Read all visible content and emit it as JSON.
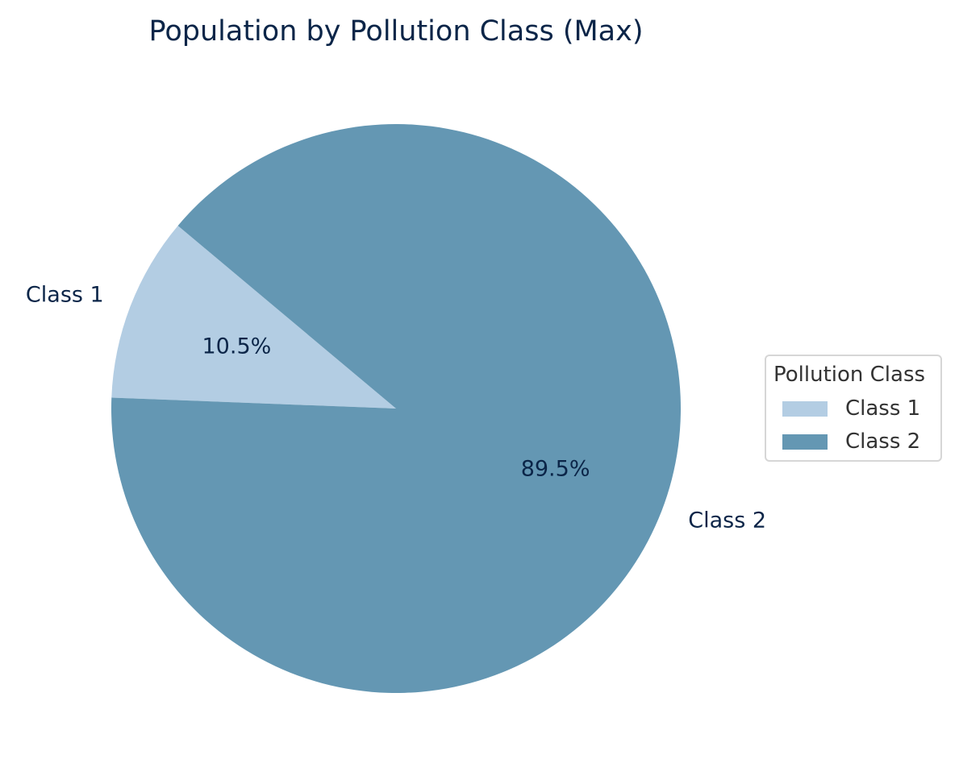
{
  "chart_data": {
    "type": "pie",
    "title": "Population by Pollution Class (Max)",
    "slices": [
      {
        "label": "Class 1",
        "value": 10.5,
        "pct_label": "10.5%",
        "color": "#b3cde3"
      },
      {
        "label": "Class 2",
        "value": 89.5,
        "pct_label": "89.5%",
        "color": "#6497b3"
      }
    ],
    "legend": {
      "title": "Pollution Class",
      "placement": "center-right",
      "entries": [
        "Class 1",
        "Class 2"
      ]
    },
    "start_angle_deg": 140,
    "direction": "counterclockwise"
  }
}
